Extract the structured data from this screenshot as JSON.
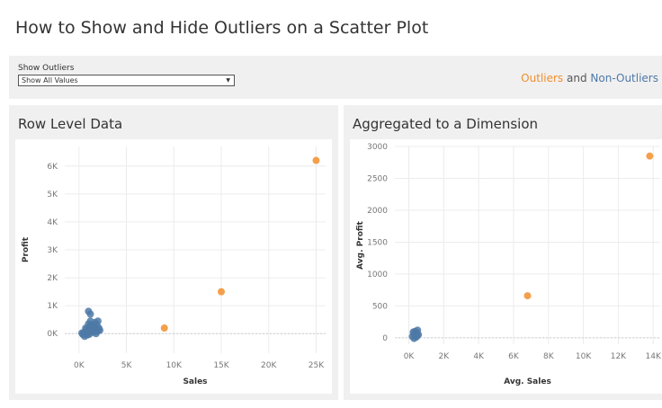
{
  "page": {
    "title": "How to Show and Hide Outliers on a Scatter Plot"
  },
  "filter": {
    "label": "Show Outliers",
    "selected": "Show All Values"
  },
  "legend": {
    "outliers": "Outliers",
    "and": "and",
    "non_outliers": "Non-Outliers",
    "outlier_color": "#f28e2b",
    "non_outlier_color": "#4e79a7"
  },
  "panels": {
    "left_title": "Row Level Data",
    "right_title": "Aggregated to a Dimension"
  },
  "chart_data": [
    {
      "type": "scatter",
      "title": "Row Level Data",
      "xlabel": "Sales",
      "ylabel": "Profit",
      "xlim": [
        -1500,
        26000
      ],
      "ylim": [
        -700,
        6700
      ],
      "xticks": [
        0,
        5000,
        10000,
        15000,
        20000,
        25000
      ],
      "xtick_labels": [
        "0K",
        "5K",
        "10K",
        "15K",
        "20K",
        "25K"
      ],
      "yticks": [
        0,
        1000,
        2000,
        3000,
        4000,
        5000,
        6000
      ],
      "ytick_labels": [
        "0K",
        "1K",
        "2K",
        "3K",
        "4K",
        "5K",
        "6K"
      ],
      "grid": true,
      "series": [
        {
          "name": "Outliers",
          "color": "#f28e2b",
          "points": [
            [
              25000,
              6200
            ],
            [
              15000,
              1500
            ],
            [
              9000,
              200
            ]
          ]
        },
        {
          "name": "Non-Outliers",
          "color": "#4e79a7",
          "points": [
            [
              1000,
              800
            ],
            [
              1200,
              700
            ],
            [
              500,
              50
            ],
            [
              800,
              150
            ],
            [
              1100,
              250
            ],
            [
              1400,
              320
            ],
            [
              1700,
              400
            ],
            [
              2000,
              450
            ],
            [
              600,
              -100
            ],
            [
              900,
              -50
            ],
            [
              1300,
              100
            ],
            [
              1600,
              150
            ],
            [
              1900,
              300
            ],
            [
              2100,
              200
            ],
            [
              300,
              20
            ],
            [
              1500,
              50
            ],
            [
              1800,
              0
            ],
            [
              2000,
              100
            ],
            [
              700,
              200
            ],
            [
              1000,
              350
            ],
            [
              1200,
              450
            ],
            [
              1500,
              250
            ],
            [
              400,
              -30
            ],
            [
              1100,
              -20
            ],
            [
              1700,
              200
            ],
            [
              1900,
              80
            ],
            [
              2200,
              120
            ],
            [
              800,
              0
            ],
            [
              1000,
              100
            ],
            [
              1300,
              300
            ]
          ]
        }
      ]
    },
    {
      "type": "scatter",
      "title": "Aggregated to a Dimension",
      "xlabel": "Avg. Sales",
      "ylabel": "Avg. Profit",
      "xlim": [
        -800,
        14400
      ],
      "ylim": [
        -100,
        3000
      ],
      "xticks": [
        0,
        2000,
        4000,
        6000,
        8000,
        10000,
        12000,
        14000
      ],
      "xtick_labels": [
        "0K",
        "2K",
        "4K",
        "6K",
        "8K",
        "10K",
        "12K",
        "14K"
      ],
      "yticks": [
        0,
        500,
        1000,
        1500,
        2000,
        2500,
        3000
      ],
      "ytick_labels": [
        "0",
        "500",
        "1000",
        "1500",
        "2000",
        "2500",
        "3000"
      ],
      "grid": true,
      "series": [
        {
          "name": "Outliers",
          "color": "#f28e2b",
          "points": [
            [
              13800,
              2850
            ],
            [
              6800,
              660
            ]
          ]
        },
        {
          "name": "Non-Outliers",
          "color": "#4e79a7",
          "points": [
            [
              200,
              20
            ],
            [
              300,
              60
            ],
            [
              350,
              100
            ],
            [
              400,
              40
            ],
            [
              450,
              80
            ],
            [
              500,
              120
            ],
            [
              300,
              -10
            ],
            [
              550,
              50
            ],
            [
              250,
              90
            ],
            [
              420,
              10
            ],
            [
              480,
              30
            ],
            [
              380,
              70
            ]
          ]
        }
      ]
    }
  ]
}
